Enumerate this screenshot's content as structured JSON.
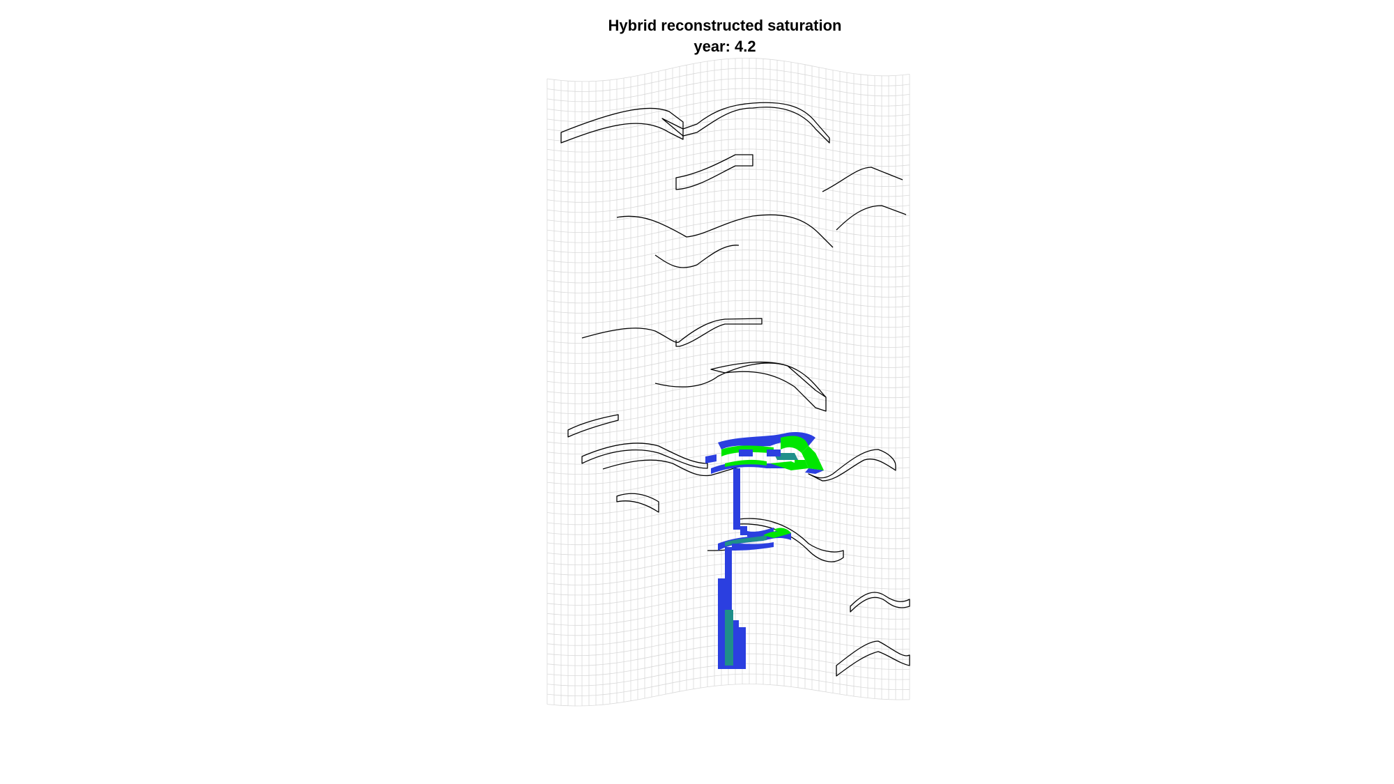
{
  "figure": {
    "title": "Hybrid reconstructed saturation",
    "subtitle": "year: 4.2"
  },
  "colors": {
    "background": "#ffffff",
    "grid_line": "#d9d9d9",
    "fault_outline": "#000000",
    "saturation_low": "#2b3fe0",
    "saturation_mid": "#1f8f8a",
    "saturation_high": "#00e600"
  }
}
